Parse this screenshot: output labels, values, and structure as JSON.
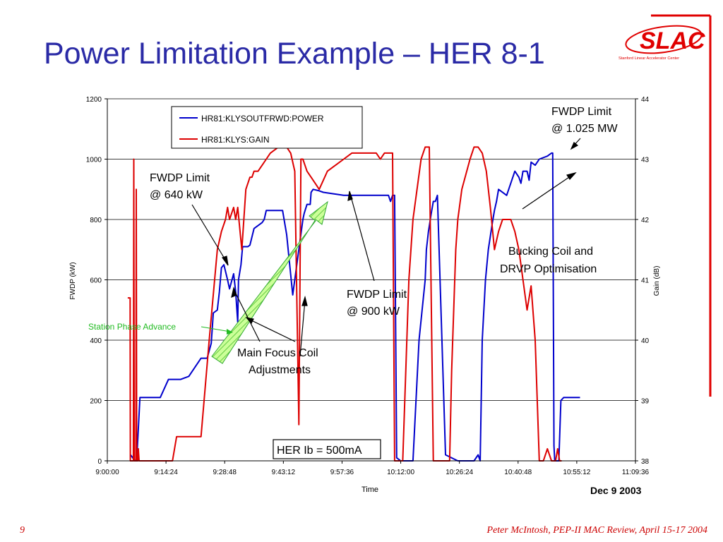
{
  "slide": {
    "title": "Power Limitation Example – HER 8-1",
    "number": "9",
    "footer": "Peter McIntosh, PEP-II MAC Review, April 15-17 2004",
    "date": "Dec 9 2003",
    "logo_text": "SLAC",
    "logo_subtext": "Stanford Linear Accelerator Center",
    "accent_color": "#e00000",
    "title_color": "#2a2aa6"
  },
  "chart_data": {
    "type": "line",
    "title": "",
    "xlabel": "Time",
    "ylabel_left": "FWDP (kW)",
    "ylabel_right": "Gain (dB)",
    "x_ticks": [
      "9:00:00",
      "9:14:24",
      "9:28:48",
      "9:43:12",
      "9:57:36",
      "10:12:00",
      "10:26:24",
      "10:40:48",
      "10:55:12",
      "11:09:36"
    ],
    "x_range_minutes": [
      0,
      129.6
    ],
    "y_left_ticks": [
      "0",
      "200",
      "400",
      "600",
      "800",
      "1000",
      "1200"
    ],
    "y_left_range": [
      0,
      1200
    ],
    "y_right_ticks": [
      "38",
      "39",
      "40",
      "41",
      "42",
      "43",
      "44"
    ],
    "y_right_range": [
      38,
      44
    ],
    "grid": true,
    "legend_position": "top-left",
    "series": [
      {
        "name": "HR81:KLYSOUTFRWD:POWER",
        "axis": "left",
        "color": "#0000cc",
        "x_minutes": [
          5.7,
          6.8,
          6.9,
          7.2,
          8.0,
          13.0,
          15.0,
          18.0,
          20.0,
          23.0,
          24.5,
          25.5,
          26.0,
          27.0,
          27.5,
          28.0,
          28.6,
          29.5,
          30.0,
          31.0,
          31.5,
          32.0,
          32.2,
          32.8,
          33.2,
          33.8,
          34.5,
          35.0,
          36.0,
          38.0,
          38.5,
          39.0,
          40.0,
          42.0,
          43.0,
          44.0,
          45.5,
          48.0,
          48.3,
          49.0,
          49.8,
          50.0,
          50.5,
          52.0,
          53.0,
          58.0,
          65.0,
          69.0,
          69.5,
          70.0,
          70.5,
          71.0,
          72.0,
          75.0,
          76.5,
          78.0,
          78.3,
          78.8,
          79.5,
          80.0,
          80.5,
          81.0,
          83.0,
          86.0,
          88.0,
          90.0,
          91.0,
          91.5,
          92.0,
          92.8,
          93.5,
          94.5,
          95.0,
          95.5,
          96.0,
          98.0,
          100.0,
          101.0,
          101.5,
          102.0,
          103.0,
          103.5,
          104.0,
          105.0,
          106.0,
          108.0,
          109.0,
          109.3,
          109.6,
          109.8,
          110.2,
          110.8,
          111.3,
          112.0,
          112.5,
          113.0,
          116.0
        ],
        "y": [
          20,
          0,
          0,
          0,
          210,
          210,
          270,
          270,
          280,
          340,
          340,
          390,
          490,
          500,
          560,
          640,
          650,
          600,
          570,
          620,
          560,
          460,
          600,
          650,
          710,
          710,
          710,
          715,
          770,
          790,
          800,
          830,
          830,
          830,
          830,
          750,
          550,
          800,
          820,
          850,
          850,
          890,
          900,
          895,
          890,
          880,
          880,
          880,
          860,
          880,
          880,
          10,
          0,
          0,
          400,
          600,
          700,
          760,
          820,
          860,
          860,
          880,
          20,
          0,
          0,
          0,
          20,
          0,
          400,
          600,
          700,
          790,
          830,
          860,
          900,
          880,
          960,
          940,
          920,
          960,
          960,
          930,
          990,
          980,
          1000,
          1010,
          1020,
          1020,
          50,
          0,
          0,
          0,
          200,
          210,
          210,
          210,
          210
        ]
      },
      {
        "name": "HR81:KLYS:GAIN",
        "axis": "right",
        "color": "#dd0000",
        "x_minutes": [
          5.0,
          5.6,
          5.65,
          6.4,
          6.5,
          6.6,
          7.0,
          7.1,
          7.2,
          7.5,
          7.6,
          7.8,
          16.0,
          17.0,
          18.0,
          23.0,
          25.0,
          27.0,
          28.0,
          29.0,
          29.5,
          30.0,
          31.0,
          31.5,
          32.0,
          33.0,
          34.0,
          35.0,
          35.5,
          36.0,
          37.0,
          38.0,
          39.0,
          40.0,
          42.0,
          44.0,
          45.0,
          46.0,
          47.0,
          47.5,
          48.0,
          48.5,
          49.0,
          50.0,
          51.0,
          52.0,
          54.0,
          56.0,
          58.0,
          60.0,
          62.0,
          64.0,
          66.0,
          67.0,
          68.0,
          70.0,
          70.5,
          71.0,
          71.5,
          72.0,
          72.5,
          73.0,
          73.5,
          74.0,
          75.0,
          77.0,
          78.0,
          79.0,
          80.0,
          81.0,
          82.0,
          83.0,
          84.0,
          84.5,
          85.0,
          85.5,
          86.0,
          87.0,
          89.0,
          90.0,
          91.0,
          92.0,
          93.0,
          94.0,
          95.0,
          96.0,
          97.0,
          98.0,
          99.0,
          100.0,
          101.0,
          102.0,
          103.0,
          104.0,
          105.0,
          106.0,
          107.0,
          108.0,
          109.0,
          109.5,
          110.0,
          110.5,
          111.0,
          111.5
        ],
        "y": [
          40.7,
          40.7,
          38.0,
          38.0,
          43.0,
          38.0,
          38.0,
          42.5,
          38.0,
          38.0,
          38.2,
          38.0,
          38.0,
          38.4,
          38.4,
          38.4,
          40.0,
          41.5,
          41.8,
          42.0,
          42.2,
          42.0,
          42.2,
          42.0,
          42.2,
          41.5,
          42.5,
          42.7,
          42.7,
          42.8,
          42.8,
          42.9,
          43.0,
          43.1,
          43.2,
          43.2,
          43.1,
          42.8,
          38.6,
          43.0,
          43.0,
          42.9,
          42.8,
          42.7,
          42.6,
          42.5,
          42.8,
          42.9,
          43.0,
          43.1,
          43.1,
          43.1,
          43.1,
          43.0,
          43.1,
          43.1,
          38.0,
          38.0,
          38.0,
          38.0,
          38.0,
          39.0,
          40.0,
          41.0,
          42.0,
          43.0,
          43.2,
          43.2,
          38.0,
          38.0,
          38.0,
          38.0,
          38.0,
          39.5,
          40.5,
          41.5,
          42.0,
          42.5,
          43.0,
          43.2,
          43.2,
          43.1,
          42.8,
          42.2,
          41.5,
          41.8,
          42.0,
          42.0,
          42.0,
          41.8,
          41.5,
          41.0,
          40.5,
          40.9,
          40.0,
          38.0,
          38.0,
          38.2,
          38.0,
          38.0,
          38.0,
          38.2,
          38.0,
          38.0
        ]
      }
    ],
    "annotations": [
      {
        "text": "FWDP Limit\n@ 640 kW"
      },
      {
        "text": "Main Focus Coil\nAdjustments"
      },
      {
        "text": "FWDP Limit\n@ 900 kW"
      },
      {
        "text": "FWDP Limit\n@ 1.025 MW"
      },
      {
        "text": "Bucking Coil and\nDRVP Optimisation"
      },
      {
        "text": "Station Phase Advance"
      },
      {
        "text": "HER Ib = 500mA"
      }
    ]
  }
}
